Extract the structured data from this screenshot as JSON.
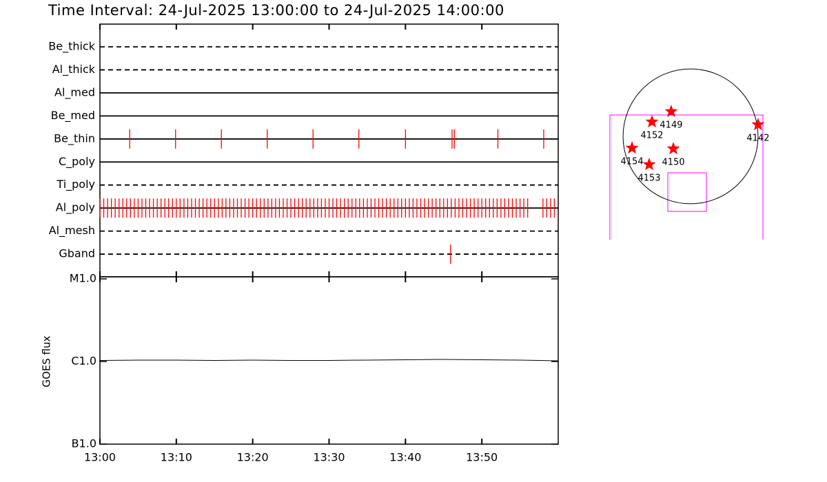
{
  "title": "Time Interval: 24-Jul-2025 13:00:00 to 24-Jul-2025 14:00:00",
  "chart_data": [
    {
      "type": "timeline",
      "xlim": [
        0,
        60
      ],
      "xticks": [
        {
          "value": 0,
          "label": "13:00"
        },
        {
          "value": 10,
          "label": "13:10"
        },
        {
          "value": 20,
          "label": "13:20"
        },
        {
          "value": 30,
          "label": "13:30"
        },
        {
          "value": 40,
          "label": "13:40"
        },
        {
          "value": 50,
          "label": "13:50"
        }
      ],
      "color": "#ff0000",
      "rows": [
        {
          "name": "Be_thick",
          "line_style": "dashed",
          "events": []
        },
        {
          "name": "Al_thick",
          "line_style": "dashed",
          "events": []
        },
        {
          "name": "Al_med",
          "line_style": "solid",
          "events": []
        },
        {
          "name": "Be_med",
          "line_style": "solid",
          "events": []
        },
        {
          "name": "Be_thin",
          "line_style": "solid",
          "events": [
            3.9,
            9.9,
            15.9,
            21.9,
            27.9,
            33.9,
            40.0,
            46.1,
            46.4,
            52.1,
            58.1
          ]
        },
        {
          "name": "C_poly",
          "line_style": "solid",
          "events": []
        },
        {
          "name": "Ti_poly",
          "line_style": "dashed",
          "events": []
        },
        {
          "name": "Al_poly",
          "line_style": "solid",
          "events": [
            0.0,
            0.5,
            1.0,
            1.5,
            2.0,
            2.5,
            3.0,
            3.5,
            4.0,
            4.5,
            5.0,
            5.5,
            6.0,
            6.5,
            7.0,
            7.5,
            8.0,
            8.5,
            9.0,
            9.5,
            10.0,
            10.5,
            11.0,
            11.5,
            12.0,
            12.5,
            13.0,
            13.5,
            14.0,
            14.5,
            15.0,
            15.5,
            16.0,
            16.5,
            17.0,
            17.5,
            18.0,
            18.5,
            19.0,
            19.5,
            20.0,
            20.5,
            21.0,
            21.5,
            22.0,
            22.5,
            23.0,
            23.5,
            24.0,
            24.5,
            25.0,
            25.5,
            26.0,
            26.5,
            27.0,
            27.5,
            28.0,
            28.5,
            29.0,
            29.5,
            30.0,
            30.5,
            31.0,
            31.5,
            32.0,
            32.5,
            33.0,
            33.5,
            34.0,
            34.5,
            35.0,
            35.5,
            36.0,
            36.5,
            37.0,
            37.5,
            38.0,
            38.5,
            39.0,
            39.5,
            40.0,
            40.5,
            41.0,
            41.5,
            42.0,
            42.5,
            43.0,
            43.5,
            44.0,
            44.5,
            45.0,
            45.5,
            46.0,
            46.5,
            47.0,
            47.5,
            48.0,
            48.5,
            49.0,
            49.5,
            50.0,
            50.5,
            51.0,
            51.5,
            52.0,
            52.5,
            53.0,
            53.5,
            54.0,
            54.5,
            55.0,
            55.5,
            56.0,
            58.0,
            58.5,
            59.0,
            59.5
          ]
        },
        {
          "name": "Al_mesh",
          "line_style": "dashed",
          "events": []
        },
        {
          "name": "Gband",
          "line_style": "dashed",
          "events": [
            45.9
          ]
        }
      ]
    },
    {
      "type": "line",
      "ylabel": "GOES flux",
      "log_scale": true,
      "xlim": [
        0,
        60
      ],
      "ylim": [
        1e-07,
        1e-05
      ],
      "yticks": [
        {
          "value": 1e-07,
          "label": "B1.0"
        },
        {
          "value": 1e-06,
          "label": "C1.0"
        },
        {
          "value": 1e-05,
          "label": "M1.0"
        }
      ],
      "x": [
        0,
        5,
        10,
        15,
        20,
        25,
        30,
        35,
        40,
        45,
        50,
        55,
        60
      ],
      "values": [
        1.03e-06,
        1.04e-06,
        1.04e-06,
        1.03e-06,
        1.04e-06,
        1.03e-06,
        1.03e-06,
        1.04e-06,
        1.05e-06,
        1.06e-06,
        1.05e-06,
        1.04e-06,
        1.02e-06
      ],
      "color": "#000000"
    },
    {
      "type": "map",
      "xlim": [
        -1200,
        1200
      ],
      "ylim": [
        -1200,
        1200
      ],
      "disk_radius": 950,
      "color": "#ff0000",
      "regions": [
        {
          "name": "4149",
          "x": -272,
          "y": 349
        },
        {
          "name": "4152",
          "x": -543,
          "y": 204
        },
        {
          "name": "4142",
          "x": 950,
          "y": 165
        },
        {
          "name": "4154",
          "x": -824,
          "y": -165
        },
        {
          "name": "4150",
          "x": -242,
          "y": -175
        },
        {
          "name": "4153",
          "x": -582,
          "y": -398
        }
      ]
    }
  ]
}
